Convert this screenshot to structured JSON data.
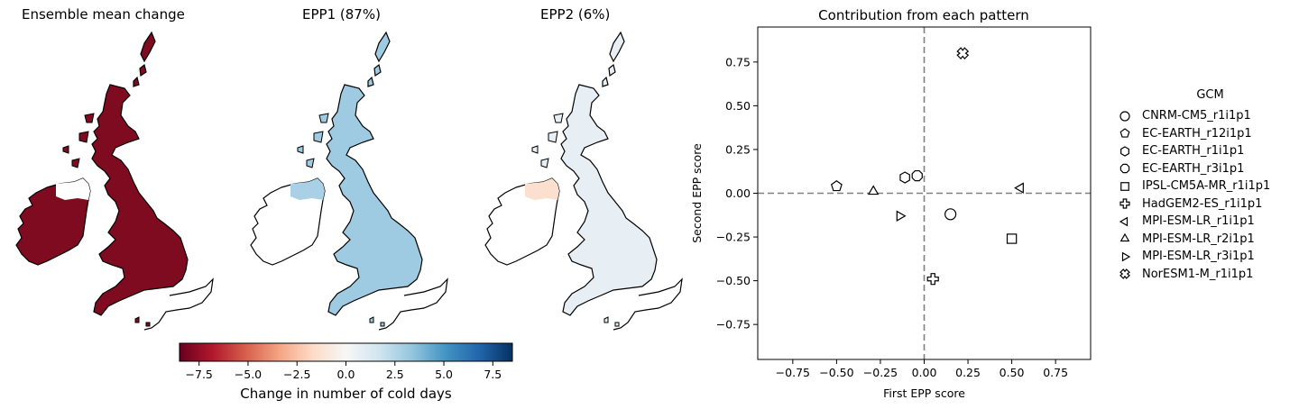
{
  "maps": [
    {
      "title": "Ensemble mean change",
      "fill": "#7f0b20",
      "ni_fill": "#7f0b20",
      "ni_patch": "#ffffff"
    },
    {
      "title": "EPP1 (87%)",
      "fill": "#9ecbe2",
      "ni_fill": "#ffffff",
      "ni_patch": "#a9d0e6"
    },
    {
      "title": "EPP2 (6%)",
      "fill": "#e7eef4",
      "ni_fill": "#ffffff",
      "ni_patch": "#fbdfcf"
    }
  ],
  "colorbar": {
    "label": "Change in number of cold days",
    "min": -8.5,
    "max": 8.5,
    "ticks": [
      -7.5,
      -5.0,
      -2.5,
      0.0,
      2.5,
      5.0,
      7.5
    ],
    "tick_labels": [
      "−7.5",
      "−5.0",
      "−2.5",
      "0.0",
      "2.5",
      "5.0",
      "7.5"
    ],
    "colormap": "RdBu",
    "colors": [
      "#67001f",
      "#b2182b",
      "#d6604d",
      "#f4a582",
      "#fddbc7",
      "#f7f7f7",
      "#d1e5f0",
      "#92c5de",
      "#4393c3",
      "#2166ac",
      "#053061"
    ]
  },
  "chart_data": {
    "type": "scatter",
    "title": "Contribution from each pattern",
    "xlabel": "First EPP score",
    "ylabel": "Second EPP score",
    "xlim": [
      -0.95,
      0.95
    ],
    "ylim": [
      -0.95,
      0.95
    ],
    "xticks": [
      -0.75,
      -0.5,
      -0.25,
      0.0,
      0.25,
      0.5,
      0.75
    ],
    "xtick_labels": [
      "−0.75",
      "−0.50",
      "−0.25",
      "0.00",
      "0.25",
      "0.50",
      "0.75"
    ],
    "yticks": [
      -0.75,
      -0.5,
      -0.25,
      0.0,
      0.25,
      0.5,
      0.75
    ],
    "ytick_labels": [
      "−0.75",
      "−0.50",
      "−0.25",
      "0.00",
      "0.25",
      "0.50",
      "0.75"
    ],
    "reference_lines": {
      "x": 0,
      "y": 0,
      "style": "dashed",
      "color": "#808080"
    },
    "legend": {
      "title": "GCM",
      "placement": "right, outside"
    },
    "series": [
      {
        "name": "CNRM-CM5_r1i1p1",
        "marker": "circle",
        "x": 0.15,
        "y": -0.12
      },
      {
        "name": "EC-EARTH_r12i1p1",
        "marker": "pentagon",
        "x": -0.5,
        "y": 0.04
      },
      {
        "name": "EC-EARTH_r1i1p1",
        "marker": "hexagon",
        "x": -0.11,
        "y": 0.09
      },
      {
        "name": "EC-EARTH_r3i1p1",
        "marker": "octagon",
        "x": -0.04,
        "y": 0.1
      },
      {
        "name": "IPSL-CM5A-MR_r1i1p1",
        "marker": "square",
        "x": 0.5,
        "y": -0.26
      },
      {
        "name": "HadGEM2-ES_r1i1p1",
        "marker": "plus",
        "x": 0.05,
        "y": -0.49
      },
      {
        "name": "MPI-ESM-LR_r1i1p1",
        "marker": "triangle-left",
        "x": 0.55,
        "y": 0.03
      },
      {
        "name": "MPI-ESM-LR_r2i1p1",
        "marker": "triangle-up",
        "x": -0.29,
        "y": 0.01
      },
      {
        "name": "MPI-ESM-LR_r3i1p1",
        "marker": "triangle-right",
        "x": -0.14,
        "y": -0.13
      },
      {
        "name": "NorESM1-M_r1i1p1",
        "marker": "x-filled",
        "x": 0.22,
        "y": 0.8
      }
    ]
  }
}
